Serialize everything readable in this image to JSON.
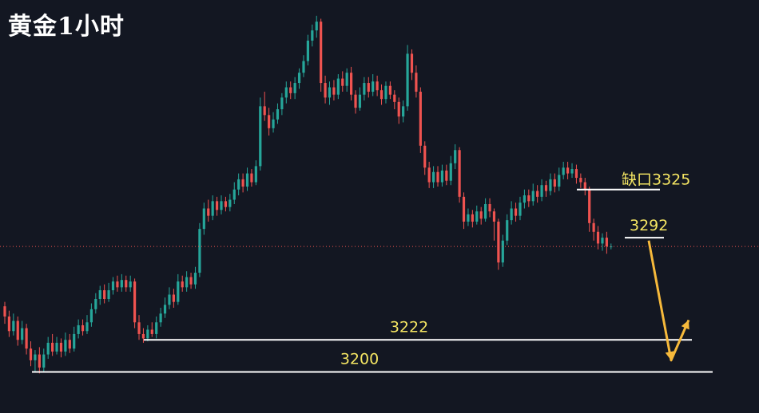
{
  "title": "黄金1小时",
  "colors": {
    "background": "#131722",
    "up": "#26a69a",
    "down": "#ef5350",
    "level_line": "#ffffff",
    "label": "#f5e663",
    "arrow": "#f6b93b",
    "price_line": "#ef5350"
  },
  "chart_data": {
    "type": "candlestick",
    "ylim": [
      3185,
      3445
    ],
    "current_price": 3286,
    "levels": [
      {
        "label": "3200",
        "value": 3200
      },
      {
        "label": "3222",
        "value": 3222
      },
      {
        "label": "缺口3325",
        "value": 3325
      },
      {
        "label": "3292",
        "value": 3292
      }
    ],
    "projection": {
      "path_values": [
        3290,
        3208,
        3229
      ]
    },
    "candles": [
      [
        3245,
        3238,
        3248,
        3233
      ],
      [
        3238,
        3228,
        3242,
        3224
      ],
      [
        3228,
        3235,
        3240,
        3225
      ],
      [
        3235,
        3222,
        3238,
        3218
      ],
      [
        3222,
        3230,
        3235,
        3219
      ],
      [
        3230,
        3216,
        3233,
        3212
      ],
      [
        3216,
        3208,
        3221,
        3204
      ],
      [
        3208,
        3212,
        3215,
        3200
      ],
      [
        3212,
        3203,
        3217,
        3199
      ],
      [
        3203,
        3212,
        3216,
        3200
      ],
      [
        3212,
        3220,
        3224,
        3209
      ],
      [
        3220,
        3214,
        3226,
        3211
      ],
      [
        3214,
        3220,
        3224,
        3212
      ],
      [
        3220,
        3214,
        3223,
        3210
      ],
      [
        3214,
        3222,
        3227,
        3211
      ],
      [
        3222,
        3216,
        3226,
        3213
      ],
      [
        3216,
        3226,
        3231,
        3214
      ],
      [
        3226,
        3232,
        3236,
        3223
      ],
      [
        3232,
        3228,
        3236,
        3225
      ],
      [
        3228,
        3234,
        3239,
        3226
      ],
      [
        3234,
        3243,
        3247,
        3231
      ],
      [
        3243,
        3250,
        3254,
        3240
      ],
      [
        3250,
        3256,
        3259,
        3246
      ],
      [
        3256,
        3250,
        3260,
        3247
      ],
      [
        3250,
        3256,
        3261,
        3248
      ],
      [
        3256,
        3262,
        3265,
        3253
      ],
      [
        3262,
        3258,
        3266,
        3255
      ],
      [
        3258,
        3263,
        3267,
        3255
      ],
      [
        3263,
        3258,
        3266,
        3255
      ],
      [
        3258,
        3262,
        3266,
        3255
      ],
      [
        3262,
        3234,
        3264,
        3230
      ],
      [
        3234,
        3226,
        3239,
        3222
      ],
      [
        3226,
        3223,
        3230,
        3220
      ],
      [
        3223,
        3229,
        3232,
        3221
      ],
      [
        3229,
        3226,
        3234,
        3224
      ],
      [
        3226,
        3234,
        3238,
        3223
      ],
      [
        3234,
        3240,
        3244,
        3231
      ],
      [
        3240,
        3246,
        3251,
        3237
      ],
      [
        3246,
        3253,
        3258,
        3243
      ],
      [
        3253,
        3248,
        3257,
        3244
      ],
      [
        3248,
        3262,
        3267,
        3246
      ],
      [
        3262,
        3258,
        3266,
        3255
      ],
      [
        3258,
        3265,
        3269,
        3255
      ],
      [
        3265,
        3260,
        3268,
        3257
      ],
      [
        3260,
        3268,
        3272,
        3257
      ],
      [
        3268,
        3298,
        3302,
        3265
      ],
      [
        3298,
        3312,
        3316,
        3294
      ],
      [
        3312,
        3307,
        3318,
        3303
      ],
      [
        3307,
        3317,
        3321,
        3304
      ],
      [
        3317,
        3311,
        3320,
        3307
      ],
      [
        3311,
        3317,
        3321,
        3308
      ],
      [
        3317,
        3313,
        3320,
        3310
      ],
      [
        3313,
        3318,
        3322,
        3310
      ],
      [
        3318,
        3325,
        3330,
        3315
      ],
      [
        3325,
        3332,
        3336,
        3321
      ],
      [
        3332,
        3327,
        3336,
        3323
      ],
      [
        3327,
        3336,
        3340,
        3324
      ],
      [
        3336,
        3330,
        3339,
        3327
      ],
      [
        3330,
        3341,
        3345,
        3328
      ],
      [
        3341,
        3382,
        3388,
        3338
      ],
      [
        3382,
        3376,
        3392,
        3372
      ],
      [
        3376,
        3367,
        3381,
        3362
      ],
      [
        3367,
        3373,
        3378,
        3364
      ],
      [
        3373,
        3380,
        3384,
        3370
      ],
      [
        3380,
        3388,
        3391,
        3376
      ],
      [
        3388,
        3395,
        3399,
        3384
      ],
      [
        3395,
        3391,
        3399,
        3387
      ],
      [
        3391,
        3398,
        3402,
        3387
      ],
      [
        3398,
        3405,
        3408,
        3394
      ],
      [
        3405,
        3413,
        3417,
        3402
      ],
      [
        3413,
        3427,
        3431,
        3410
      ],
      [
        3427,
        3434,
        3438,
        3423
      ],
      [
        3434,
        3440,
        3444,
        3429
      ],
      [
        3440,
        3398,
        3442,
        3392
      ],
      [
        3398,
        3388,
        3403,
        3384
      ],
      [
        3388,
        3395,
        3399,
        3383
      ],
      [
        3395,
        3390,
        3400,
        3386
      ],
      [
        3390,
        3401,
        3404,
        3387
      ],
      [
        3401,
        3396,
        3406,
        3392
      ],
      [
        3396,
        3405,
        3408,
        3392
      ],
      [
        3405,
        3390,
        3409,
        3386
      ],
      [
        3390,
        3381,
        3393,
        3377
      ],
      [
        3381,
        3390,
        3395,
        3379
      ],
      [
        3390,
        3398,
        3402,
        3386
      ],
      [
        3398,
        3392,
        3402,
        3388
      ],
      [
        3392,
        3399,
        3404,
        3389
      ],
      [
        3399,
        3393,
        3403,
        3389
      ],
      [
        3393,
        3387,
        3397,
        3383
      ],
      [
        3387,
        3396,
        3399,
        3384
      ],
      [
        3396,
        3390,
        3399,
        3387
      ],
      [
        3390,
        3385,
        3393,
        3380
      ],
      [
        3385,
        3375,
        3388,
        3370
      ],
      [
        3375,
        3382,
        3386,
        3371
      ],
      [
        3382,
        3418,
        3424,
        3379
      ],
      [
        3418,
        3405,
        3421,
        3400
      ],
      [
        3405,
        3392,
        3410,
        3388
      ],
      [
        3392,
        3355,
        3395,
        3350
      ],
      [
        3355,
        3340,
        3358,
        3335
      ],
      [
        3340,
        3330,
        3344,
        3326
      ],
      [
        3330,
        3337,
        3341,
        3326
      ],
      [
        3337,
        3330,
        3341,
        3327
      ],
      [
        3330,
        3338,
        3342,
        3327
      ],
      [
        3338,
        3331,
        3342,
        3328
      ],
      [
        3331,
        3343,
        3348,
        3328
      ],
      [
        3343,
        3352,
        3356,
        3339
      ],
      [
        3352,
        3320,
        3354,
        3316
      ],
      [
        3320,
        3303,
        3323,
        3298
      ],
      [
        3303,
        3308,
        3312,
        3300
      ],
      [
        3308,
        3303,
        3311,
        3299
      ],
      [
        3303,
        3310,
        3314,
        3301
      ],
      [
        3310,
        3305,
        3313,
        3301
      ],
      [
        3305,
        3315,
        3319,
        3303
      ],
      [
        3315,
        3310,
        3319,
        3306
      ],
      [
        3310,
        3303,
        3312,
        3290
      ],
      [
        3303,
        3275,
        3305,
        3270
      ],
      [
        3275,
        3290,
        3294,
        3272
      ],
      [
        3290,
        3304,
        3308,
        3287
      ],
      [
        3304,
        3312,
        3317,
        3301
      ],
      [
        3312,
        3307,
        3316,
        3303
      ],
      [
        3307,
        3316,
        3320,
        3304
      ],
      [
        3316,
        3321,
        3325,
        3312
      ],
      [
        3321,
        3317,
        3325,
        3313
      ],
      [
        3317,
        3324,
        3329,
        3314
      ],
      [
        3324,
        3320,
        3328,
        3316
      ],
      [
        3320,
        3328,
        3332,
        3317
      ],
      [
        3328,
        3324,
        3331,
        3320
      ],
      [
        3324,
        3332,
        3336,
        3321
      ],
      [
        3332,
        3327,
        3336,
        3323
      ],
      [
        3327,
        3335,
        3340,
        3324
      ],
      [
        3335,
        3340,
        3344,
        3332
      ],
      [
        3340,
        3336,
        3344,
        3332
      ],
      [
        3336,
        3339,
        3343,
        3333
      ],
      [
        3339,
        3333,
        3342,
        3329
      ],
      [
        3333,
        3330,
        3336,
        3326
      ],
      [
        3330,
        3325,
        3333,
        3321
      ],
      [
        3325,
        3302,
        3327,
        3296
      ],
      [
        3302,
        3296,
        3305,
        3290
      ],
      [
        3296,
        3288,
        3300,
        3284
      ],
      [
        3288,
        3292,
        3295,
        3283
      ],
      [
        3292,
        3286,
        3296,
        3281
      ],
      [
        3286,
        3286,
        3288,
        3284
      ]
    ]
  }
}
